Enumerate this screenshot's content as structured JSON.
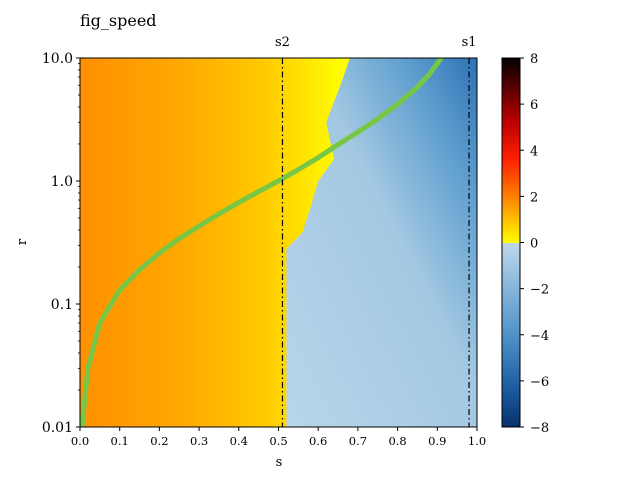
{
  "chart_data": {
    "type": "heatmap",
    "title": "fig_speed",
    "xlabel": "s",
    "ylabel": "r",
    "xlim": [
      0.0,
      1.0
    ],
    "ylim": [
      0.01,
      10.0
    ],
    "y_scale": "log",
    "x_ticks": [
      "0.0",
      "0.1",
      "0.2",
      "0.3",
      "0.4",
      "0.5",
      "0.6",
      "0.7",
      "0.8",
      "0.9",
      "1.0"
    ],
    "y_ticks": [
      "0.01",
      "0.1",
      "1.0",
      "10.0"
    ],
    "vertical_lines": [
      {
        "label": "s2",
        "x": 0.51,
        "style": "dash-dot"
      },
      {
        "label": "s1",
        "x": 0.98,
        "style": "dash-dot"
      }
    ],
    "boundary_curve": {
      "color": "#77c745",
      "points": [
        {
          "s": 0.005,
          "r": 0.01
        },
        {
          "s": 0.02,
          "r": 0.03
        },
        {
          "s": 0.05,
          "r": 0.07
        },
        {
          "s": 0.1,
          "r": 0.13
        },
        {
          "s": 0.15,
          "r": 0.19
        },
        {
          "s": 0.2,
          "r": 0.26
        },
        {
          "s": 0.25,
          "r": 0.34
        },
        {
          "s": 0.3,
          "r": 0.43
        },
        {
          "s": 0.35,
          "r": 0.54
        },
        {
          "s": 0.4,
          "r": 0.67
        },
        {
          "s": 0.45,
          "r": 0.82
        },
        {
          "s": 0.5,
          "r": 1.0
        },
        {
          "s": 0.55,
          "r": 1.24
        },
        {
          "s": 0.6,
          "r": 1.55
        },
        {
          "s": 0.65,
          "r": 1.98
        },
        {
          "s": 0.7,
          "r": 2.5
        },
        {
          "s": 0.75,
          "r": 3.2
        },
        {
          "s": 0.8,
          "r": 4.2
        },
        {
          "s": 0.85,
          "r": 5.8
        },
        {
          "s": 0.88,
          "r": 7.4
        },
        {
          "s": 0.91,
          "r": 10.0
        }
      ]
    },
    "region_boundary": {
      "points": [
        {
          "s": 0.52,
          "r": 0.01
        },
        {
          "s": 0.52,
          "r": 0.28
        },
        {
          "s": 0.56,
          "r": 0.38
        },
        {
          "s": 0.58,
          "r": 0.6
        },
        {
          "s": 0.6,
          "r": 1.0
        },
        {
          "s": 0.64,
          "r": 1.5
        },
        {
          "s": 0.62,
          "r": 3.0
        },
        {
          "s": 0.66,
          "r": 6.5
        },
        {
          "s": 0.68,
          "r": 10.0
        }
      ]
    },
    "colorbar": {
      "ticks": [
        "8",
        "6",
        "4",
        "2",
        "0",
        "−2",
        "−4",
        "−6",
        "−8"
      ],
      "min": -8,
      "max": 8
    },
    "colors": {
      "orange": "#ff9a00",
      "yellow": "#ffff00",
      "light_blue": "#aecfe6",
      "dark_blue": "#2a72b5",
      "curve_green": "#77c745"
    }
  }
}
